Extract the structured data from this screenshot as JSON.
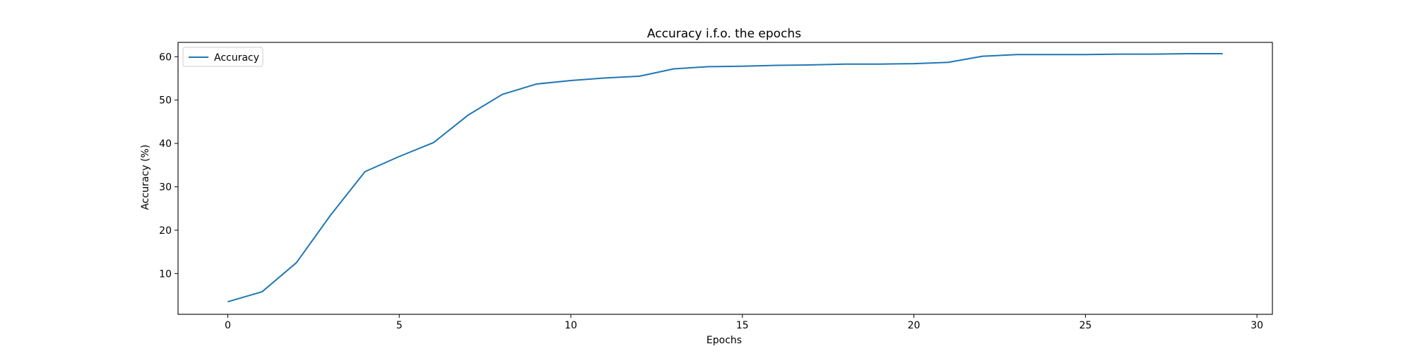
{
  "chart_data": {
    "type": "line",
    "title": "Accuracy i.f.o. the epochs",
    "xlabel": "Epochs",
    "ylabel": "Accuracy (%)",
    "xlim": [
      -1.45,
      30.45
    ],
    "ylim": [
      0.6,
      63.3
    ],
    "xticks": [
      0,
      5,
      10,
      15,
      20,
      25,
      30
    ],
    "yticks": [
      10,
      20,
      30,
      40,
      50,
      60
    ],
    "grid": false,
    "legend_position": "top-left",
    "series": [
      {
        "name": "Accuracy",
        "color": "#1f77b4",
        "x": [
          0,
          1,
          2,
          3,
          4,
          5,
          6,
          7,
          8,
          9,
          10,
          11,
          12,
          13,
          14,
          15,
          16,
          17,
          18,
          19,
          20,
          21,
          22,
          23,
          24,
          25,
          26,
          27,
          28,
          29
        ],
        "y": [
          3.5,
          5.8,
          12.5,
          23.5,
          33.5,
          37.0,
          40.2,
          46.5,
          51.3,
          53.7,
          54.5,
          55.1,
          55.5,
          57.2,
          57.7,
          57.8,
          58.0,
          58.1,
          58.3,
          58.3,
          58.4,
          58.7,
          60.1,
          60.5,
          60.5,
          60.5,
          60.6,
          60.6,
          60.7,
          60.7
        ]
      }
    ]
  }
}
